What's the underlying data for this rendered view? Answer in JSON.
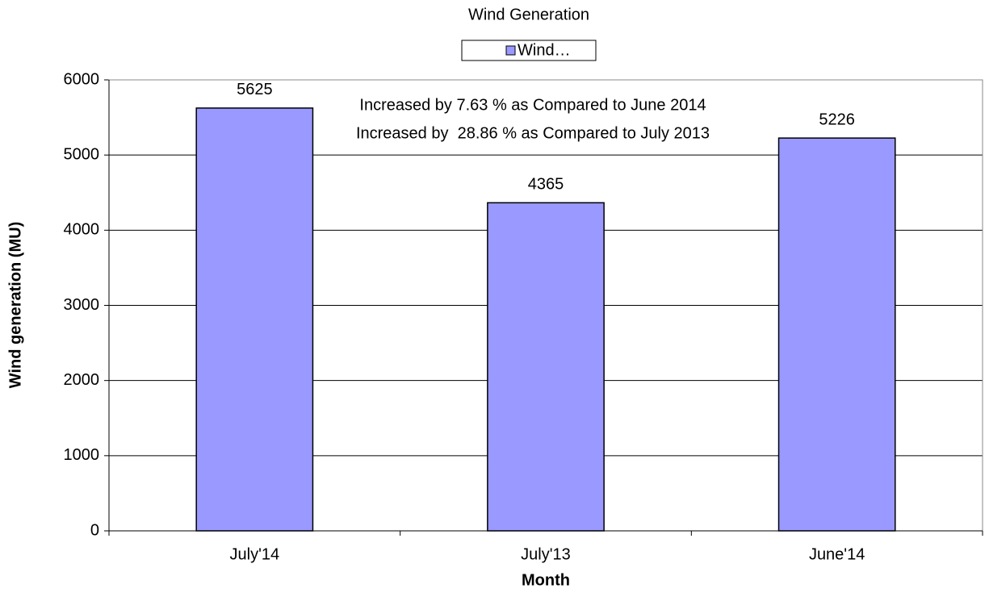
{
  "chart_data": {
    "type": "bar",
    "title": "Wind Generation",
    "categories": [
      "July'14",
      "July'13",
      "June'14"
    ],
    "series": [
      {
        "name": "Wind…",
        "color": "#9999ff",
        "values": [
          5625,
          4365,
          5226
        ]
      }
    ],
    "ylim": [
      0,
      6000
    ],
    "yticks": [
      0,
      1000,
      2000,
      3000,
      4000,
      5000,
      6000
    ],
    "ylabel": "Wind generation (MU)",
    "xlabel": "Month",
    "grid": true,
    "legend": "top",
    "annotations": [
      "Increased by 7.63 % as Compared to June 2014",
      "Increased by  28.86 % as Compared to July 2013"
    ]
  }
}
